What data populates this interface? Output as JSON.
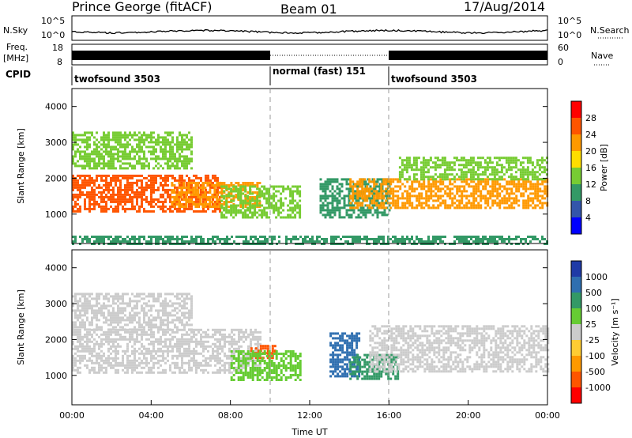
{
  "header": {
    "station": "Prince George (fitACF)",
    "beam": "Beam 01",
    "date": "17/Aug/2014"
  },
  "nsky_panel": {
    "left_label": "N.Sky",
    "right_label": "N.Search",
    "yticks_left": [
      "10^5",
      "10^0"
    ],
    "yticks_right": [
      "10^5",
      "10^0"
    ]
  },
  "freq_panel": {
    "left_label_line1": "Freq.",
    "left_label_line2": "[MHz]",
    "yticks_left": [
      "18",
      "8"
    ],
    "yticks_right": [
      "60",
      "0"
    ],
    "right_label": "Nave"
  },
  "cpid": {
    "label": "CPID",
    "segments": [
      {
        "name": "twofsound 3503",
        "start_hour": 0,
        "end_hour": 10
      },
      {
        "name": "normal (fast) 151",
        "start_hour": 10,
        "end_hour": 16
      },
      {
        "name": "twofsound 3503",
        "start_hour": 16,
        "end_hour": 24
      }
    ]
  },
  "power_colorbar": {
    "title": "Power [dB]",
    "ticks": [
      "28",
      "24",
      "20",
      "16",
      "12",
      "8",
      "4"
    ],
    "colors": [
      "#ff0000",
      "#ff5500",
      "#ff9900",
      "#ffdd00",
      "#77cc33",
      "#339966",
      "#3355aa",
      "#0000ff"
    ]
  },
  "velocity_colorbar": {
    "title": "Velocity [m s⁻¹]",
    "ticks": [
      "1000",
      "500",
      "100",
      "25",
      "-25",
      "-100",
      "-500",
      "-1000"
    ],
    "colors": [
      "#1f3aa6",
      "#2f6fb0",
      "#339966",
      "#66cc33",
      "#cccccc",
      "#ffcc33",
      "#ff9900",
      "#ff5500",
      "#ff0000"
    ]
  },
  "chart_data": [
    {
      "type": "heatmap",
      "name": "power",
      "ylabel": "Slant Range [km]",
      "xlim": [
        0,
        24
      ],
      "ylim": [
        180,
        4500
      ],
      "yticks": [
        1000,
        2000,
        3000,
        4000
      ],
      "bands": [
        {
          "start": 0.0,
          "end": 7.5,
          "range_lo": 1100,
          "range_hi": 2100,
          "power": 24
        },
        {
          "start": 0.0,
          "end": 6.0,
          "range_lo": 2300,
          "range_hi": 3300,
          "power": 12
        },
        {
          "start": 5.0,
          "end": 9.5,
          "range_lo": 1200,
          "range_hi": 1900,
          "power": 20
        },
        {
          "start": 7.5,
          "end": 11.5,
          "range_lo": 900,
          "range_hi": 1800,
          "power": 12
        },
        {
          "start": 12.5,
          "end": 16.0,
          "range_lo": 900,
          "range_hi": 2000,
          "power": 8
        },
        {
          "start": 14.0,
          "end": 24.0,
          "range_lo": 1200,
          "range_hi": 2000,
          "power": 20
        },
        {
          "start": 16.5,
          "end": 24.0,
          "range_lo": 2000,
          "range_hi": 2600,
          "power": 12
        },
        {
          "start": 0.0,
          "end": 24.0,
          "range_lo": 200,
          "range_hi": 400,
          "power": 8
        }
      ]
    },
    {
      "type": "heatmap",
      "name": "velocity",
      "ylabel": "Slant Range [km]",
      "xlabel": "Time UT",
      "xlim": [
        0,
        24
      ],
      "ylim": [
        180,
        4500
      ],
      "yticks": [
        1000,
        2000,
        3000,
        4000
      ],
      "xticks": [
        "00:00",
        "04:00",
        "08:00",
        "12:00",
        "16:00",
        "20:00",
        "00:00"
      ],
      "bands": [
        {
          "start": 0.0,
          "end": 9.5,
          "range_lo": 1100,
          "range_hi": 2300,
          "velocity": 0
        },
        {
          "start": 0.0,
          "end": 6.0,
          "range_lo": 2300,
          "range_hi": 3300,
          "velocity": 0
        },
        {
          "start": 9.0,
          "end": 10.2,
          "range_lo": 1500,
          "range_hi": 1850,
          "velocity": -800
        },
        {
          "start": 8.0,
          "end": 11.5,
          "range_lo": 900,
          "range_hi": 1700,
          "velocity": 60
        },
        {
          "start": 13.0,
          "end": 14.5,
          "range_lo": 1000,
          "range_hi": 2200,
          "velocity": 900
        },
        {
          "start": 14.0,
          "end": 16.5,
          "range_lo": 900,
          "range_hi": 1600,
          "velocity": 200
        },
        {
          "start": 15.0,
          "end": 24.0,
          "range_lo": 1100,
          "range_hi": 2400,
          "velocity": 0
        }
      ]
    }
  ]
}
